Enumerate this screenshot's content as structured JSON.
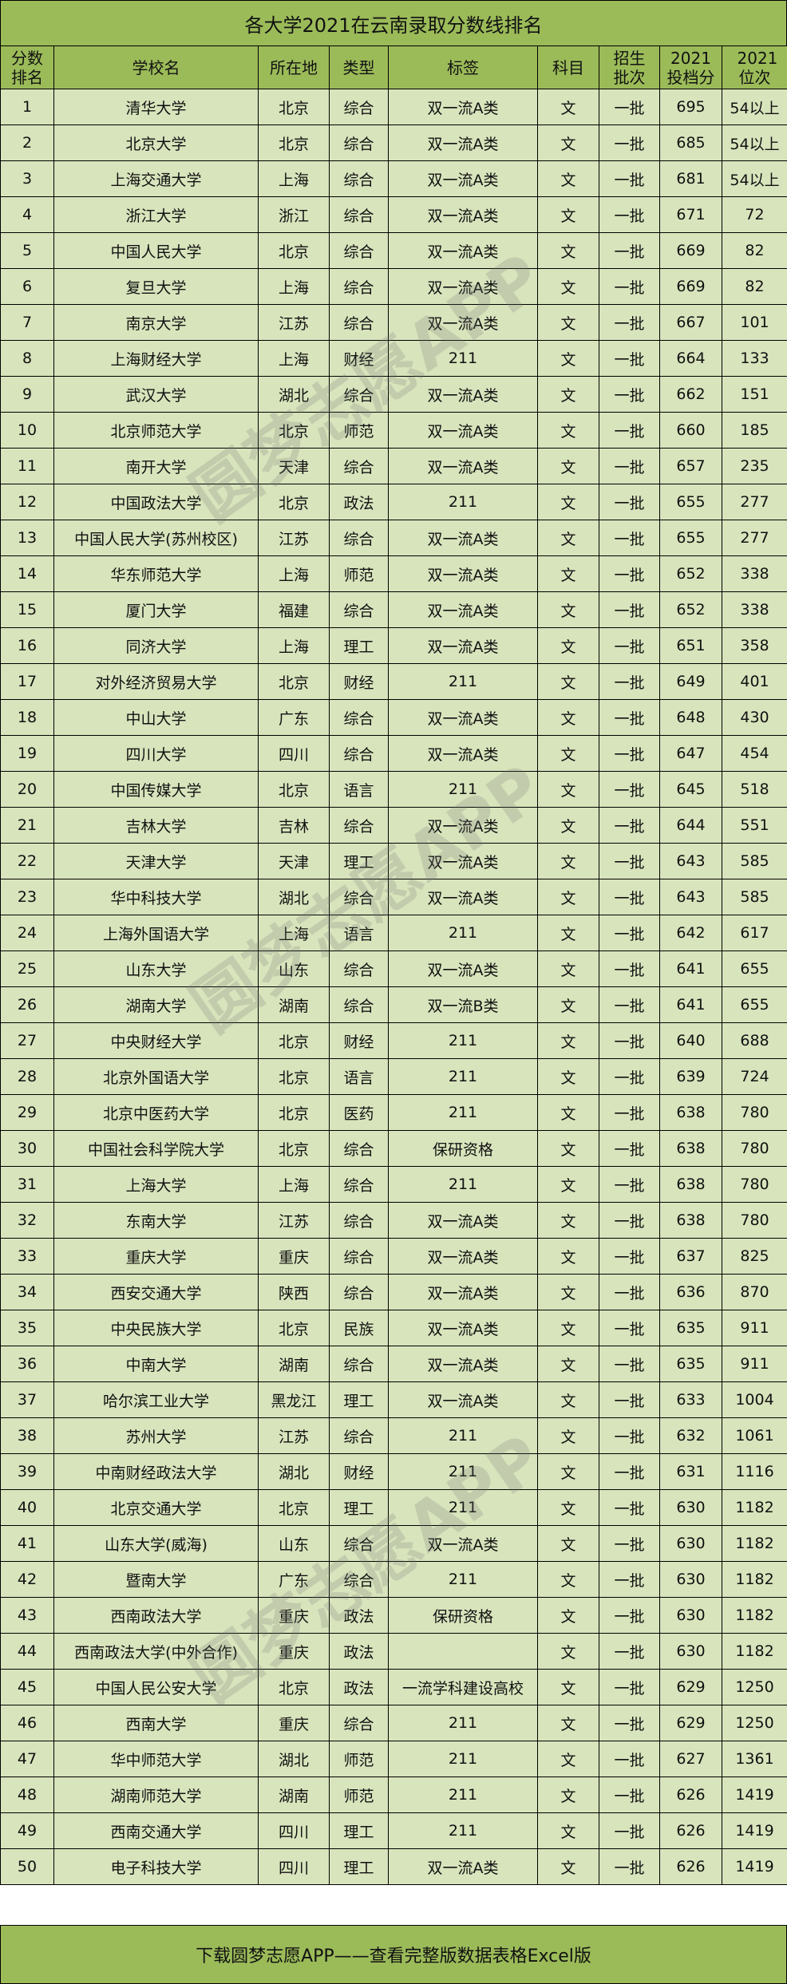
{
  "title": "各大学2021在云南录取分数线排名",
  "headers": [
    "分数排名",
    "学校名",
    "所在地",
    "类型",
    "标签",
    "科目",
    "招生批次",
    "2021投档分",
    "2021位次"
  ],
  "rows": [
    [
      "1",
      "清华大学",
      "北京",
      "综合",
      "双一流A类",
      "文",
      "一批",
      "695",
      "54以上"
    ],
    [
      "2",
      "北京大学",
      "北京",
      "综合",
      "双一流A类",
      "文",
      "一批",
      "685",
      "54以上"
    ],
    [
      "3",
      "上海交通大学",
      "上海",
      "综合",
      "双一流A类",
      "文",
      "一批",
      "681",
      "54以上"
    ],
    [
      "4",
      "浙江大学",
      "浙江",
      "综合",
      "双一流A类",
      "文",
      "一批",
      "671",
      "72"
    ],
    [
      "5",
      "中国人民大学",
      "北京",
      "综合",
      "双一流A类",
      "文",
      "一批",
      "669",
      "82"
    ],
    [
      "6",
      "复旦大学",
      "上海",
      "综合",
      "双一流A类",
      "文",
      "一批",
      "669",
      "82"
    ],
    [
      "7",
      "南京大学",
      "江苏",
      "综合",
      "双一流A类",
      "文",
      "一批",
      "667",
      "101"
    ],
    [
      "8",
      "上海财经大学",
      "上海",
      "财经",
      "211",
      "文",
      "一批",
      "664",
      "133"
    ],
    [
      "9",
      "武汉大学",
      "湖北",
      "综合",
      "双一流A类",
      "文",
      "一批",
      "662",
      "151"
    ],
    [
      "10",
      "北京师范大学",
      "北京",
      "师范",
      "双一流A类",
      "文",
      "一批",
      "660",
      "185"
    ],
    [
      "11",
      "南开大学",
      "天津",
      "综合",
      "双一流A类",
      "文",
      "一批",
      "657",
      "235"
    ],
    [
      "12",
      "中国政法大学",
      "北京",
      "政法",
      "211",
      "文",
      "一批",
      "655",
      "277"
    ],
    [
      "13",
      "中国人民大学(苏州校区)",
      "江苏",
      "综合",
      "双一流A类",
      "文",
      "一批",
      "655",
      "277"
    ],
    [
      "14",
      "华东师范大学",
      "上海",
      "师范",
      "双一流A类",
      "文",
      "一批",
      "652",
      "338"
    ],
    [
      "15",
      "厦门大学",
      "福建",
      "综合",
      "双一流A类",
      "文",
      "一批",
      "652",
      "338"
    ],
    [
      "16",
      "同济大学",
      "上海",
      "理工",
      "双一流A类",
      "文",
      "一批",
      "651",
      "358"
    ],
    [
      "17",
      "对外经济贸易大学",
      "北京",
      "财经",
      "211",
      "文",
      "一批",
      "649",
      "401"
    ],
    [
      "18",
      "中山大学",
      "广东",
      "综合",
      "双一流A类",
      "文",
      "一批",
      "648",
      "430"
    ],
    [
      "19",
      "四川大学",
      "四川",
      "综合",
      "双一流A类",
      "文",
      "一批",
      "647",
      "454"
    ],
    [
      "20",
      "中国传媒大学",
      "北京",
      "语言",
      "211",
      "文",
      "一批",
      "645",
      "518"
    ],
    [
      "21",
      "吉林大学",
      "吉林",
      "综合",
      "双一流A类",
      "文",
      "一批",
      "644",
      "551"
    ],
    [
      "22",
      "天津大学",
      "天津",
      "理工",
      "双一流A类",
      "文",
      "一批",
      "643",
      "585"
    ],
    [
      "23",
      "华中科技大学",
      "湖北",
      "综合",
      "双一流A类",
      "文",
      "一批",
      "643",
      "585"
    ],
    [
      "24",
      "上海外国语大学",
      "上海",
      "语言",
      "211",
      "文",
      "一批",
      "642",
      "617"
    ],
    [
      "25",
      "山东大学",
      "山东",
      "综合",
      "双一流A类",
      "文",
      "一批",
      "641",
      "655"
    ],
    [
      "26",
      "湖南大学",
      "湖南",
      "综合",
      "双一流B类",
      "文",
      "一批",
      "641",
      "655"
    ],
    [
      "27",
      "中央财经大学",
      "北京",
      "财经",
      "211",
      "文",
      "一批",
      "640",
      "688"
    ],
    [
      "28",
      "北京外国语大学",
      "北京",
      "语言",
      "211",
      "文",
      "一批",
      "639",
      "724"
    ],
    [
      "29",
      "北京中医药大学",
      "北京",
      "医药",
      "211",
      "文",
      "一批",
      "638",
      "780"
    ],
    [
      "30",
      "中国社会科学院大学",
      "北京",
      "综合",
      "保研资格",
      "文",
      "一批",
      "638",
      "780"
    ],
    [
      "31",
      "上海大学",
      "上海",
      "综合",
      "211",
      "文",
      "一批",
      "638",
      "780"
    ],
    [
      "32",
      "东南大学",
      "江苏",
      "综合",
      "双一流A类",
      "文",
      "一批",
      "638",
      "780"
    ],
    [
      "33",
      "重庆大学",
      "重庆",
      "综合",
      "双一流A类",
      "文",
      "一批",
      "637",
      "825"
    ],
    [
      "34",
      "西安交通大学",
      "陕西",
      "综合",
      "双一流A类",
      "文",
      "一批",
      "636",
      "870"
    ],
    [
      "35",
      "中央民族大学",
      "北京",
      "民族",
      "双一流A类",
      "文",
      "一批",
      "635",
      "911"
    ],
    [
      "36",
      "中南大学",
      "湖南",
      "综合",
      "双一流A类",
      "文",
      "一批",
      "635",
      "911"
    ],
    [
      "37",
      "哈尔滨工业大学",
      "黑龙江",
      "理工",
      "双一流A类",
      "文",
      "一批",
      "633",
      "1004"
    ],
    [
      "38",
      "苏州大学",
      "江苏",
      "综合",
      "211",
      "文",
      "一批",
      "632",
      "1061"
    ],
    [
      "39",
      "中南财经政法大学",
      "湖北",
      "财经",
      "211",
      "文",
      "一批",
      "631",
      "1116"
    ],
    [
      "40",
      "北京交通大学",
      "北京",
      "理工",
      "211",
      "文",
      "一批",
      "630",
      "1182"
    ],
    [
      "41",
      "山东大学(威海)",
      "山东",
      "综合",
      "双一流A类",
      "文",
      "一批",
      "630",
      "1182"
    ],
    [
      "42",
      "暨南大学",
      "广东",
      "综合",
      "211",
      "文",
      "一批",
      "630",
      "1182"
    ],
    [
      "43",
      "西南政法大学",
      "重庆",
      "政法",
      "保研资格",
      "文",
      "一批",
      "630",
      "1182"
    ],
    [
      "44",
      "西南政法大学(中外合作)",
      "重庆",
      "政法",
      "",
      "文",
      "一批",
      "630",
      "1182"
    ],
    [
      "45",
      "中国人民公安大学",
      "北京",
      "政法",
      "一流学科建设高校",
      "文",
      "一批",
      "629",
      "1250"
    ],
    [
      "46",
      "西南大学",
      "重庆",
      "综合",
      "211",
      "文",
      "一批",
      "629",
      "1250"
    ],
    [
      "47",
      "华中师范大学",
      "湖北",
      "师范",
      "211",
      "文",
      "一批",
      "627",
      "1361"
    ],
    [
      "48",
      "湖南师范大学",
      "湖南",
      "师范",
      "211",
      "文",
      "一批",
      "626",
      "1419"
    ],
    [
      "49",
      "西南交通大学",
      "四川",
      "理工",
      "211",
      "文",
      "一批",
      "626",
      "1419"
    ],
    [
      "50",
      "电子科技大学",
      "四川",
      "理工",
      "双一流A类",
      "文",
      "一批",
      "626",
      "1419"
    ]
  ],
  "footer": "下载圆梦志愿APP——查看完整版数据表格Excel版",
  "watermark": "圆梦志愿APP",
  "colors": {
    "header_bg": "#9bbb59",
    "row_bg": "#d8e4bc",
    "border": "#000000"
  }
}
